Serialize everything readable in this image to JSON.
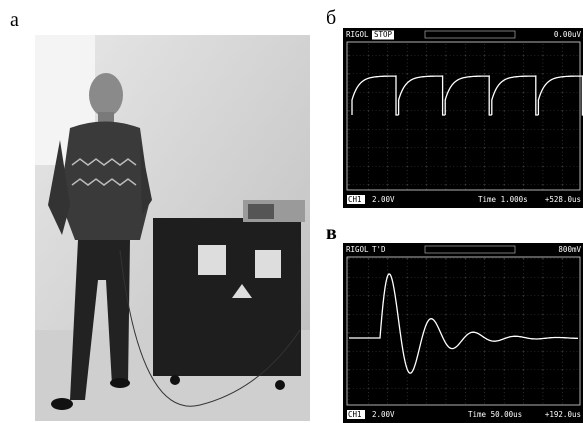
{
  "labels": {
    "a": "а",
    "b": "б",
    "c": "в"
  },
  "scope_top": {
    "brand": "RIGOL",
    "status": "STOP",
    "trigger_level": "0.00uV",
    "channel": "CH1",
    "volts_div": "2.00V",
    "time_div": "Time 1.000s",
    "offset": "+528.0us"
  },
  "scope_bottom": {
    "brand": "RIGOL",
    "status": "T'D",
    "trigger_level": "800mV",
    "channel": "CH1",
    "volts_div": "2.00V",
    "time_div": "Time 50.00us",
    "offset": "+192.0us"
  }
}
